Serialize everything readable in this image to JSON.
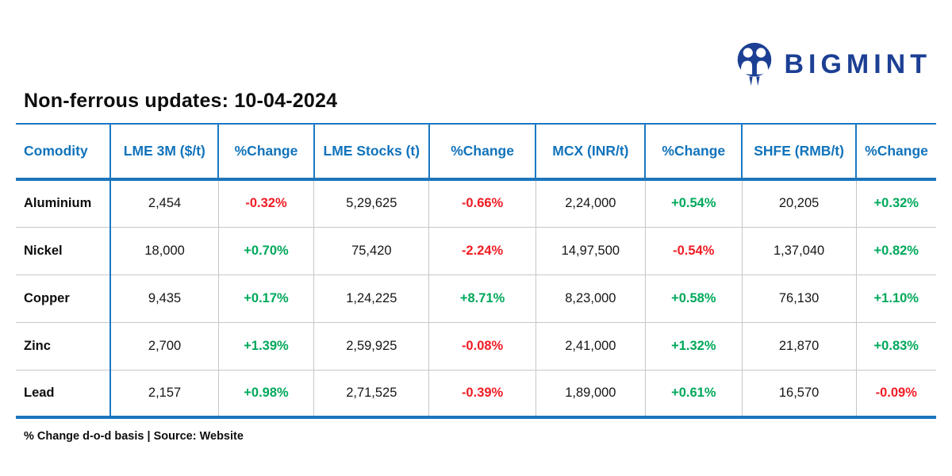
{
  "logo": {
    "text": "BIGMINT",
    "icon": "bigmint-people-icon"
  },
  "chart_data": {
    "type": "table",
    "title": "Non-ferrous updates: 10-04-2024",
    "columns": [
      "Comodity",
      "LME 3M ($/t)",
      "%Change",
      "LME Stocks (t)",
      "%Change",
      "MCX (INR/t)",
      "%Change",
      "SHFE (RMB/t)",
      "%Change"
    ],
    "rows": [
      [
        "Aluminium",
        "2,454",
        "-0.32%",
        "5,29,625",
        "-0.66%",
        "2,24,000",
        "+0.54%",
        "20,205",
        "+0.32%"
      ],
      [
        "Nickel",
        "18,000",
        "+0.70%",
        "75,420",
        "-2.24%",
        "14,97,500",
        "-0.54%",
        "1,37,040",
        "+0.82%"
      ],
      [
        "Copper",
        "9,435",
        "+0.17%",
        "1,24,225",
        "+8.71%",
        "8,23,000",
        "+0.58%",
        "76,130",
        "+1.10%"
      ],
      [
        "Zinc",
        "2,700",
        "+1.39%",
        "2,59,925",
        "-0.08%",
        "2,41,000",
        "+1.32%",
        "21,870",
        "+0.83%"
      ],
      [
        "Lead",
        "2,157",
        "+0.98%",
        "2,71,525",
        "-0.39%",
        "1,89,000",
        "+0.61%",
        "16,570",
        "-0.09%"
      ]
    ],
    "legend_position": "none",
    "grid": "on",
    "value_color_rule": "positive change green, negative change red"
  },
  "footer_note": "% Change d-o-d basis | Source: Website",
  "colors": {
    "header_blue": "#1173BB",
    "border_blue": "#1B78C2",
    "thick_blue": "#1B75BC",
    "grid_gray": "#C7C7C7",
    "positive_green": "#00A85B",
    "negative_red": "#F01C24",
    "logo_navy": "#1C3F94"
  }
}
